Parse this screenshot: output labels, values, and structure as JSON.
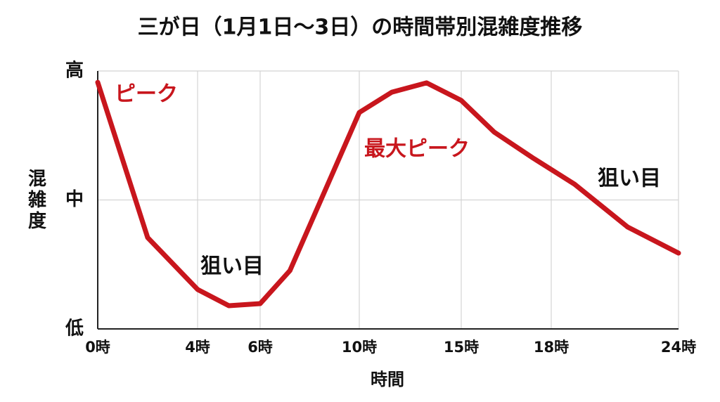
{
  "chart_data": {
    "type": "line",
    "title": "三が日（1月1日〜3日）の時間帯別混雑度推移",
    "x_label": "時間",
    "y_label": "混雑度",
    "x": [
      0,
      2,
      4,
      5,
      6,
      7.2,
      10,
      11.6,
      13.3,
      15,
      16.1,
      17.4,
      19.1,
      21.6,
      24
    ],
    "values": [
      95.6,
      35.4,
      15.3,
      9,
      9.8,
      22.6,
      83.9,
      91.8,
      95.4,
      88.6,
      76.3,
      66.2,
      56.1,
      39.5,
      29.4
    ],
    "color": "#c8161d",
    "xlim": [
      0,
      24
    ],
    "xticks": [
      {
        "value": 0,
        "label": "0時"
      },
      {
        "value": 4,
        "label": "4時"
      },
      {
        "value": 6,
        "label": "6時"
      },
      {
        "value": 10,
        "label": "10時"
      },
      {
        "value": 15,
        "label": "15時"
      },
      {
        "value": 18,
        "label": "18時"
      },
      {
        "value": 24,
        "label": "24時"
      }
    ],
    "ylim": [
      0,
      100
    ],
    "yticks": [
      {
        "value": 0,
        "label": "低"
      },
      {
        "value": 50,
        "label": "中"
      },
      {
        "value": 100,
        "label": "高"
      }
    ],
    "grid": true,
    "annotations": [
      {
        "text": "ピーク",
        "color": "#c8161d"
      },
      {
        "text": "狙い目",
        "color": "#111111"
      },
      {
        "text": "最大ピーク",
        "color": "#c8161d"
      },
      {
        "text": "狙い目",
        "color": "#111111"
      }
    ]
  }
}
